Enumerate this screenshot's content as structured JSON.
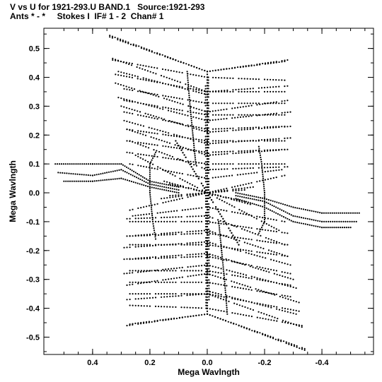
{
  "header": {
    "line1": "V vs U for 1921-293.U BAND.1   Source:1921-293",
    "line2": "Ants * - *     Stokes I  IF# 1 - 2  Chan# 1"
  },
  "chart_data": {
    "type": "scatter",
    "xlabel": "Mega Wavlngth",
    "ylabel": "Mega Wavlngth",
    "xlim": [
      0.57,
      -0.58
    ],
    "ylim": [
      -0.56,
      0.57
    ],
    "x_reversed": true,
    "x_ticks": [
      0.4,
      0.2,
      0.0,
      -0.2,
      -0.4
    ],
    "x_tick_labels": [
      "0.4",
      "0.2",
      "0.0",
      "-0.2",
      "-0.4"
    ],
    "y_ticks": [
      0.5,
      0.4,
      0.3,
      0.2,
      0.1,
      0.0,
      -0.1,
      -0.2,
      -0.3,
      -0.4,
      -0.5
    ],
    "y_tick_labels": [
      "0.5",
      "0.4",
      "0.3",
      "0.2",
      "0.1",
      "0.0",
      "-0.1",
      "-0.2",
      "-0.3",
      "-0.4",
      "-0.5"
    ],
    "grid": false,
    "marker_color": "#000000",
    "tracks": [
      {
        "points": [
          [
            0.34,
            0.545
          ],
          [
            0.0,
            0.42
          ],
          [
            -0.28,
            0.46
          ]
        ]
      },
      {
        "points": [
          [
            0.33,
            0.465
          ],
          [
            0.0,
            0.35
          ],
          [
            -0.28,
            0.37
          ]
        ]
      },
      {
        "points": [
          [
            0.31,
            0.42
          ],
          [
            0.0,
            0.34
          ]
        ]
      },
      {
        "points": [
          [
            0.32,
            0.38
          ],
          [
            0.0,
            0.28
          ],
          [
            -0.28,
            0.32
          ]
        ]
      },
      {
        "points": [
          [
            0.31,
            0.33
          ],
          [
            0.0,
            0.25
          ],
          [
            -0.29,
            0.28
          ]
        ]
      },
      {
        "points": [
          [
            0.3,
            0.3
          ],
          [
            0.0,
            0.21
          ],
          [
            -0.29,
            0.23
          ]
        ]
      },
      {
        "points": [
          [
            0.29,
            0.25
          ],
          [
            0.0,
            0.17
          ],
          [
            -0.29,
            0.19
          ]
        ]
      },
      {
        "points": [
          [
            0.28,
            0.22
          ],
          [
            0.0,
            0.13
          ],
          [
            -0.28,
            0.15
          ]
        ]
      },
      {
        "points": [
          [
            0.27,
            0.18
          ],
          [
            0.0,
            0.08
          ],
          [
            -0.28,
            0.09
          ]
        ]
      },
      {
        "points": [
          [
            0.25,
            0.13
          ],
          [
            0.0,
            0.0
          ],
          [
            -0.27,
            0.06
          ]
        ]
      },
      {
        "points": [
          [
            0.15,
            0.04
          ],
          [
            0.0,
            0.0
          ],
          [
            -0.16,
            0.02
          ]
        ]
      },
      {
        "points": [
          [
            0.13,
            0.03
          ],
          [
            0.0,
            0.0
          ],
          [
            -0.13,
            0.01
          ]
        ]
      },
      {
        "points": [
          [
            0.26,
            -0.08
          ],
          [
            0.0,
            -0.05
          ],
          [
            -0.27,
            -0.1
          ]
        ]
      },
      {
        "points": [
          [
            0.27,
            -0.1
          ],
          [
            0.0,
            -0.1
          ],
          [
            -0.28,
            -0.14
          ]
        ]
      },
      {
        "points": [
          [
            0.27,
            -0.15
          ],
          [
            0.0,
            -0.14
          ],
          [
            -0.28,
            -0.18
          ]
        ]
      },
      {
        "points": [
          [
            0.27,
            -0.18
          ],
          [
            0.0,
            -0.18
          ],
          [
            -0.28,
            -0.22
          ]
        ]
      },
      {
        "points": [
          [
            0.27,
            -0.23
          ],
          [
            0.0,
            -0.22
          ],
          [
            -0.29,
            -0.28
          ]
        ]
      },
      {
        "points": [
          [
            0.27,
            -0.27
          ],
          [
            0.0,
            -0.27
          ],
          [
            -0.29,
            -0.32
          ]
        ]
      },
      {
        "points": [
          [
            0.27,
            -0.31
          ],
          [
            0.0,
            -0.31
          ],
          [
            -0.29,
            -0.36
          ]
        ]
      },
      {
        "points": [
          [
            0.27,
            -0.35
          ],
          [
            0.0,
            -0.35
          ],
          [
            -0.32,
            -0.41
          ]
        ]
      },
      {
        "points": [
          [
            0.27,
            -0.39
          ],
          [
            0.0,
            -0.4
          ],
          [
            -0.33,
            -0.46
          ]
        ]
      },
      {
        "points": [
          [
            0.27,
            -0.455
          ],
          [
            0.0,
            -0.42
          ],
          [
            -0.34,
            -0.54
          ]
        ]
      },
      {
        "points": [
          [
            0.0,
            0.42
          ],
          [
            0.0,
            -0.42
          ]
        ]
      },
      {
        "points": [
          [
            -0.004,
            0.4
          ],
          [
            -0.006,
            -0.38
          ]
        ]
      },
      {
        "points": [
          [
            0.11,
            0.18
          ],
          [
            0.0,
            0.0
          ]
        ]
      },
      {
        "points": [
          [
            -0.11,
            -0.18
          ],
          [
            0.0,
            0.0
          ]
        ]
      }
    ],
    "arcs": [
      {
        "points": [
          [
            0.53,
            0.1
          ],
          [
            0.4,
            0.1
          ],
          [
            0.3,
            0.1
          ],
          [
            0.2,
            0.04
          ],
          [
            0.1,
            0.02
          ]
        ]
      },
      {
        "points": [
          [
            0.52,
            0.07
          ],
          [
            0.4,
            0.06
          ],
          [
            0.3,
            0.08
          ],
          [
            0.2,
            0.03
          ],
          [
            0.1,
            0.01
          ]
        ]
      },
      {
        "points": [
          [
            0.5,
            0.04
          ],
          [
            0.4,
            0.04
          ],
          [
            0.3,
            0.05
          ],
          [
            0.2,
            0.02
          ],
          [
            0.1,
            0.0
          ]
        ]
      },
      {
        "points": [
          [
            -0.1,
            0.0
          ],
          [
            -0.2,
            -0.02
          ],
          [
            -0.3,
            -0.05
          ],
          [
            -0.4,
            -0.07
          ],
          [
            -0.53,
            -0.07
          ]
        ]
      },
      {
        "points": [
          [
            -0.1,
            -0.01
          ],
          [
            -0.2,
            -0.03
          ],
          [
            -0.3,
            -0.08
          ],
          [
            -0.4,
            -0.1
          ],
          [
            -0.52,
            -0.1
          ]
        ]
      },
      {
        "points": [
          [
            -0.1,
            -0.02
          ],
          [
            -0.2,
            -0.05
          ],
          [
            -0.3,
            -0.1
          ],
          [
            -0.4,
            -0.12
          ],
          [
            -0.5,
            -0.12
          ]
        ]
      },
      {
        "points": [
          [
            0.18,
            0.14
          ],
          [
            0.2,
            0.1
          ],
          [
            0.2,
            0.0
          ],
          [
            0.19,
            -0.1
          ],
          [
            0.18,
            -0.16
          ]
        ]
      },
      {
        "points": [
          [
            -0.18,
            -0.14
          ],
          [
            -0.2,
            -0.1
          ],
          [
            -0.2,
            0.0
          ],
          [
            -0.19,
            0.1
          ],
          [
            -0.18,
            0.16
          ]
        ]
      },
      {
        "points": [
          [
            0.07,
            0.42
          ],
          [
            0.06,
            0.3
          ],
          [
            0.05,
            0.2
          ],
          [
            0.04,
            0.1
          ]
        ]
      },
      {
        "points": [
          [
            -0.07,
            -0.42
          ],
          [
            -0.06,
            -0.3
          ],
          [
            -0.05,
            -0.2
          ],
          [
            -0.04,
            -0.1
          ]
        ]
      }
    ]
  }
}
